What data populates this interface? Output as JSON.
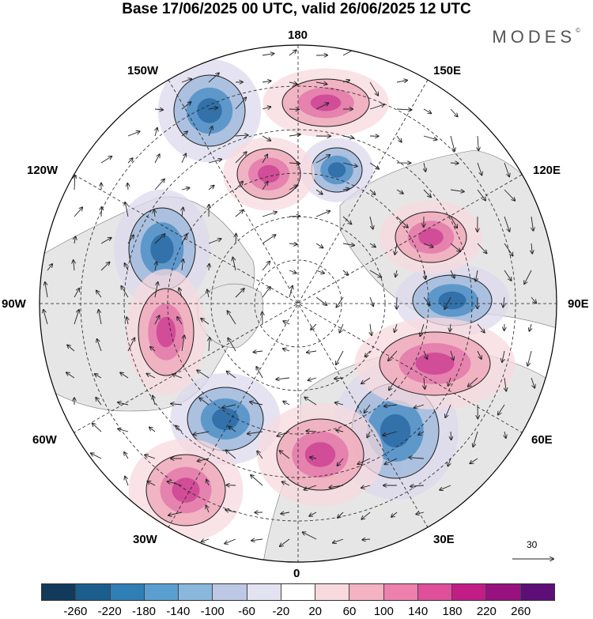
{
  "title": "Base 17/06/2025 00 UTC, valid 26/06/2025 12 UTC",
  "brand": "MODES",
  "brand_mark": "©",
  "longitude_labels": {
    "top": "180",
    "bottom": "0",
    "left": "90W",
    "right": "90E",
    "upper_left_1": "150W",
    "upper_left_2": "120W",
    "lower_left_1": "60W",
    "lower_left_2": "30W",
    "upper_right_1": "150E",
    "upper_right_2": "120E",
    "lower_right_1": "60E",
    "lower_right_2": "30E"
  },
  "vector_scale_label": "30",
  "colorbar": {
    "colors": [
      "#123b5b",
      "#1b5e8c",
      "#2f7fb6",
      "#5a9fcf",
      "#8ab7dc",
      "#bcc8e4",
      "#e3e2f1",
      "#ffffff",
      "#f8d9dd",
      "#f4b3c2",
      "#ed80ad",
      "#df4f9a",
      "#c21d86",
      "#97117f",
      "#5e0f77"
    ],
    "tick_labels": [
      "-260",
      "-220",
      "-180",
      "-140",
      "-100",
      "-60",
      "-20",
      "20",
      "60",
      "100",
      "140",
      "180",
      "220",
      "260"
    ]
  },
  "anomaly_colors": {
    "neg_weak": "#dcd9ec",
    "neg_mid": "#a9bfdf",
    "neg_strong": "#5a95c8",
    "neg_core": "#2f6fa6",
    "pos_weak": "#f7dadf",
    "pos_mid": "#f0b1c1",
    "pos_strong": "#e47fad",
    "pos_core": "#d04a97"
  }
}
